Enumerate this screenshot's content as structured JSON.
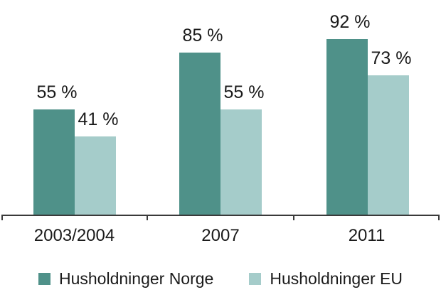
{
  "chart_data": {
    "type": "bar",
    "title": "",
    "xlabel": "",
    "ylabel": "",
    "ylim": [
      0,
      100
    ],
    "grid": false,
    "legend_position": "bottom",
    "categories": [
      "2003/2004",
      "2007",
      "2011"
    ],
    "series": [
      {
        "name": "Husholdninger Norge",
        "color": "#4F9189",
        "values": [
          55,
          85,
          92
        ]
      },
      {
        "name": "Husholdninger EU",
        "color": "#A5CCCA",
        "values": [
          41,
          55,
          73
        ]
      }
    ],
    "value_labels": [
      [
        "55 %",
        "85 %",
        "92 %"
      ],
      [
        "41 %",
        "55 %",
        "73 %"
      ]
    ]
  },
  "legend": {
    "items": [
      {
        "label": "Husholdninger Norge",
        "color": "#4F9189"
      },
      {
        "label": "Husholdninger EU",
        "color": "#A5CCCA"
      }
    ]
  },
  "colors": {
    "axis": "#3A3A3A",
    "text": "#1A1A1A",
    "background": "#FFFFFF"
  }
}
